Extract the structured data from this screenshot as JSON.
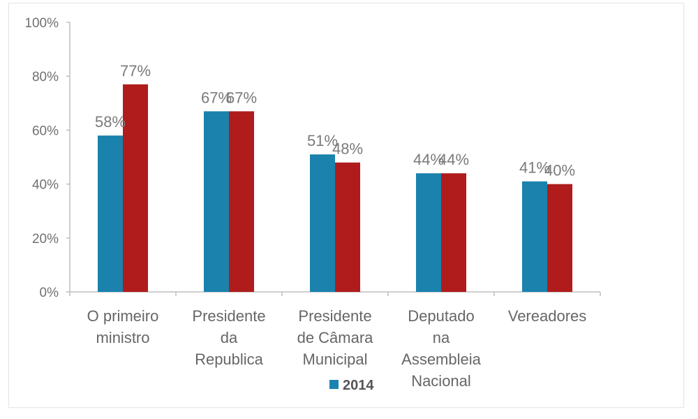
{
  "chart_data": {
    "type": "bar",
    "categories": [
      [
        "O primeiro",
        "ministro"
      ],
      [
        "Presidente",
        "da",
        "Republica"
      ],
      [
        "Presidente",
        "de Câmara",
        "Municipal"
      ],
      [
        "Deputado",
        "na",
        "Assembleia",
        "Nacional"
      ],
      [
        "Vereadores"
      ]
    ],
    "series": [
      {
        "name": "2014",
        "color": "#1a82ad",
        "values": [
          58,
          67,
          51,
          44,
          41
        ],
        "labels": [
          "58%",
          "67%",
          "51%",
          "44%",
          "41%"
        ]
      },
      {
        "color": "#b01c1c",
        "values": [
          77,
          67,
          48,
          44,
          40
        ],
        "labels": [
          "77%",
          "67%",
          "48%",
          "44%",
          "40%"
        ]
      }
    ],
    "y_ticks": [
      0,
      20,
      40,
      60,
      80,
      100
    ],
    "y_tick_labels": [
      "0%",
      "20%",
      "40%",
      "60%",
      "80%",
      "100%"
    ],
    "ylim": [
      0,
      100
    ],
    "legend": {
      "position": "bottom-center",
      "label": "2014",
      "color": "#1a82ad"
    },
    "grid": false
  }
}
